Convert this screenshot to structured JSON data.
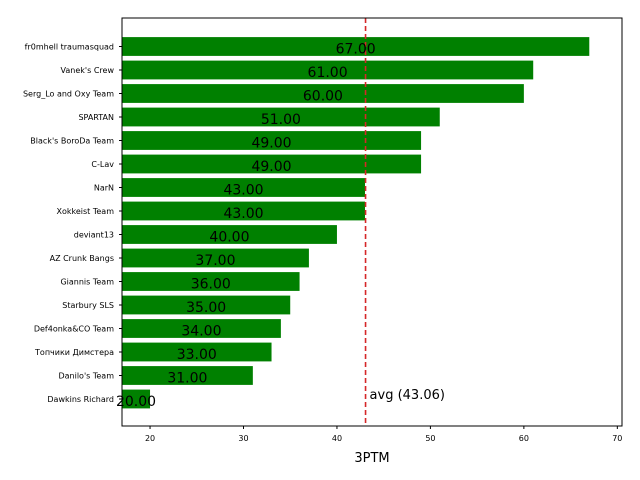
{
  "chart_data": {
    "type": "bar",
    "orientation": "horizontal",
    "categories": [
      "fr0mhell traumasquad",
      "Vanek's Crew",
      "Serg_Lo and Oxy Team",
      "SPARTAN",
      "Black's BoroDa Team",
      "C-Lav",
      "NarN",
      "Xokkeist Team",
      "deviant13",
      "AZ Crunk Bangs",
      "Giannis Team",
      "Starbury SLS",
      "Def4onka&CO Team",
      "Топчики Димстера",
      "Danilo's Team",
      "Dawkins Richard"
    ],
    "values": [
      67,
      61,
      60,
      51,
      49,
      49,
      43,
      43,
      40,
      37,
      36,
      35,
      34,
      33,
      31,
      20
    ],
    "value_labels": [
      "67.00",
      "61.00",
      "60.00",
      "51.00",
      "49.00",
      "49.00",
      "43.00",
      "43.00",
      "40.00",
      "37.00",
      "36.00",
      "35.00",
      "34.00",
      "33.00",
      "31.00",
      "20.00"
    ],
    "xlabel": "3PTM",
    "xlim": [
      17,
      70.5
    ],
    "xticks": [
      20,
      30,
      40,
      50,
      60,
      70
    ],
    "bar_color": "#008000",
    "average": {
      "value": 43.06,
      "label": "avg (43.06)",
      "color": "#d62728",
      "style": "dashed"
    },
    "grid": false
  }
}
